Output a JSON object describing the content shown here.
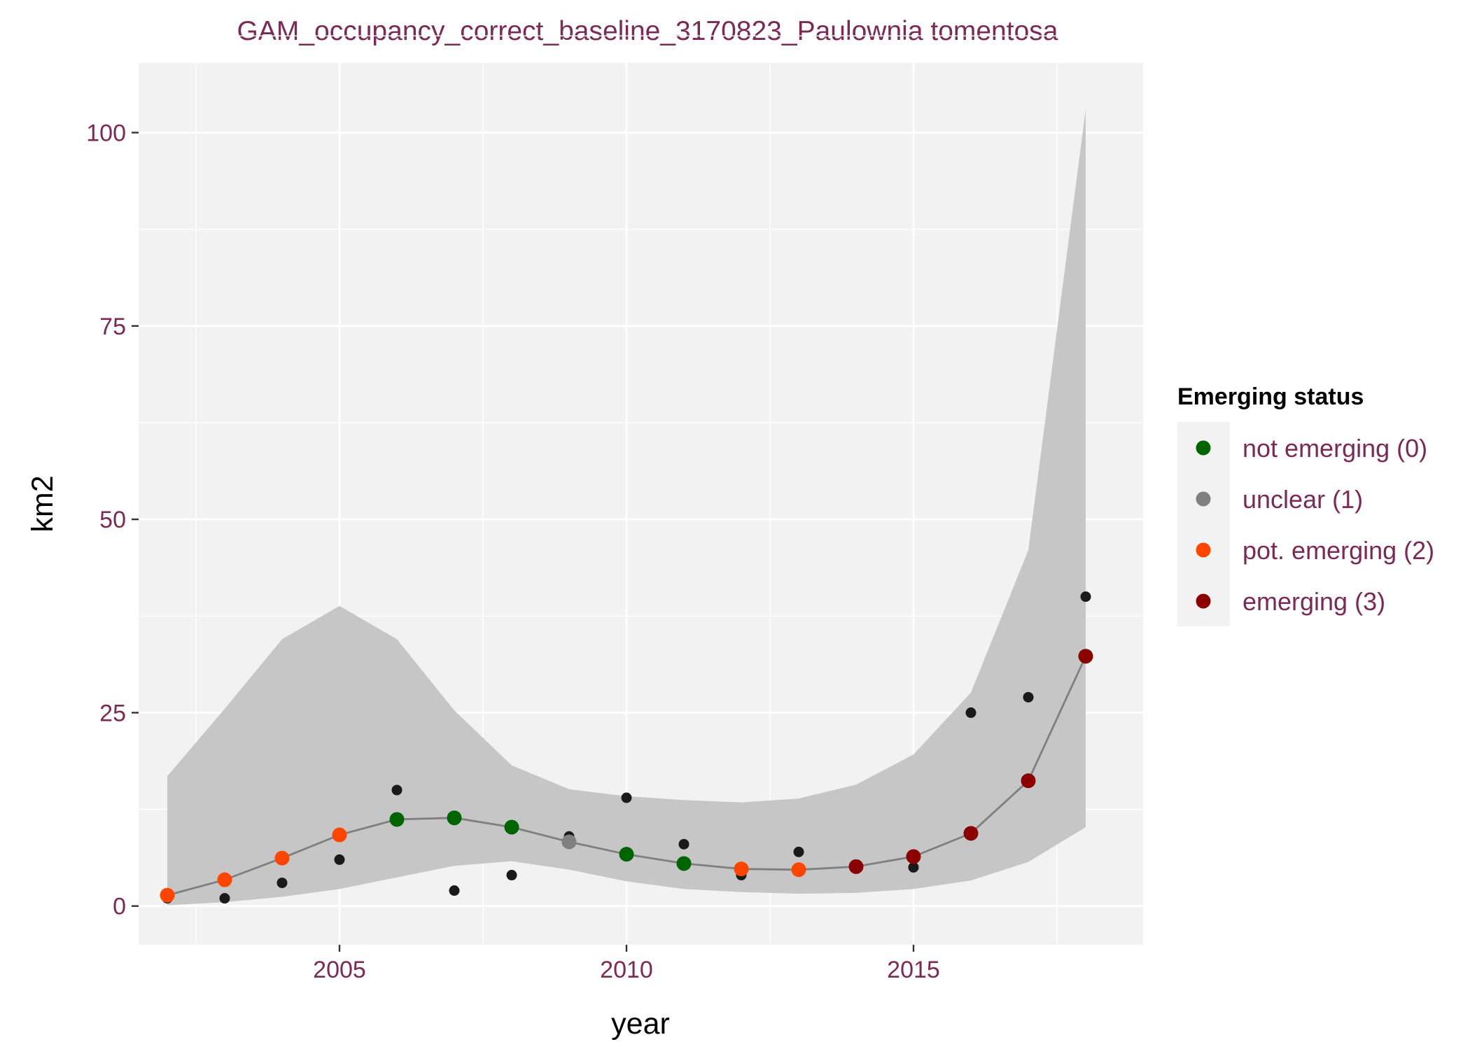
{
  "chart_data": {
    "type": "scatter",
    "title": "GAM_occupancy_correct_baseline_3170823_Paulownia tomentosa",
    "xlabel": "year",
    "ylabel": "km2",
    "xlim": [
      2001.5,
      2019.0
    ],
    "ylim": [
      -5,
      109
    ],
    "x_ticks": [
      2005,
      2010,
      2015
    ],
    "y_ticks": [
      0,
      25,
      50,
      75,
      100
    ],
    "grid": true,
    "legend": {
      "title": "Emerging status",
      "position": "right",
      "entries": [
        {
          "key": "0",
          "label": "not emerging (0)",
          "color": "#006400"
        },
        {
          "key": "1",
          "label": "unclear (1)",
          "color": "#808080"
        },
        {
          "key": "2",
          "label": "pot. emerging (2)",
          "color": "#ff4500"
        },
        {
          "key": "3",
          "label": "emerging (3)",
          "color": "#8b0000"
        }
      ]
    },
    "colors": {
      "panel": "#f2f2f2",
      "grid": "#ffffff",
      "ribbon": "#c6c6c6",
      "fit_line": "#7f7f7f",
      "observed": "#1a1a1a"
    },
    "observed": [
      {
        "x": 2002,
        "y": 1
      },
      {
        "x": 2003,
        "y": 1
      },
      {
        "x": 2004,
        "y": 3
      },
      {
        "x": 2005,
        "y": 6
      },
      {
        "x": 2006,
        "y": 15
      },
      {
        "x": 2007,
        "y": 2
      },
      {
        "x": 2008,
        "y": 4
      },
      {
        "x": 2009,
        "y": 9
      },
      {
        "x": 2010,
        "y": 14
      },
      {
        "x": 2011,
        "y": 8
      },
      {
        "x": 2012,
        "y": 4
      },
      {
        "x": 2013,
        "y": 7
      },
      {
        "x": 2014,
        "y": 5
      },
      {
        "x": 2015,
        "y": 5
      },
      {
        "x": 2016,
        "y": 25
      },
      {
        "x": 2017,
        "y": 27
      },
      {
        "x": 2018,
        "y": 40
      }
    ],
    "fitted": [
      {
        "x": 2002,
        "y": 1.4,
        "lower": 0.1,
        "upper": 16.8,
        "status": "2"
      },
      {
        "x": 2003,
        "y": 3.4,
        "lower": 0.5,
        "upper": 25.5,
        "status": "2"
      },
      {
        "x": 2004,
        "y": 6.2,
        "lower": 1.2,
        "upper": 34.5,
        "status": "2"
      },
      {
        "x": 2005,
        "y": 9.2,
        "lower": 2.2,
        "upper": 38.8,
        "status": "2"
      },
      {
        "x": 2006,
        "y": 11.2,
        "lower": 3.7,
        "upper": 34.5,
        "status": "0"
      },
      {
        "x": 2007,
        "y": 11.4,
        "lower": 5.2,
        "upper": 25.3,
        "status": "0"
      },
      {
        "x": 2008,
        "y": 10.2,
        "lower": 5.8,
        "upper": 18.2,
        "status": "0"
      },
      {
        "x": 2009,
        "y": 8.3,
        "lower": 4.7,
        "upper": 15.1,
        "status": "1"
      },
      {
        "x": 2010,
        "y": 6.7,
        "lower": 3.2,
        "upper": 14.2,
        "status": "0"
      },
      {
        "x": 2011,
        "y": 5.5,
        "lower": 2.2,
        "upper": 13.7,
        "status": "0"
      },
      {
        "x": 2012,
        "y": 4.8,
        "lower": 1.8,
        "upper": 13.4,
        "status": "2"
      },
      {
        "x": 2013,
        "y": 4.7,
        "lower": 1.6,
        "upper": 13.9,
        "status": "2"
      },
      {
        "x": 2014,
        "y": 5.1,
        "lower": 1.7,
        "upper": 15.7,
        "status": "3"
      },
      {
        "x": 2015,
        "y": 6.4,
        "lower": 2.2,
        "upper": 19.6,
        "status": "3"
      },
      {
        "x": 2016,
        "y": 9.4,
        "lower": 3.3,
        "upper": 27.6,
        "status": "3"
      },
      {
        "x": 2017,
        "y": 16.2,
        "lower": 5.7,
        "upper": 46.0,
        "status": "3"
      },
      {
        "x": 2018,
        "y": 32.3,
        "lower": 10.2,
        "upper": 103.0,
        "status": "3"
      }
    ]
  }
}
